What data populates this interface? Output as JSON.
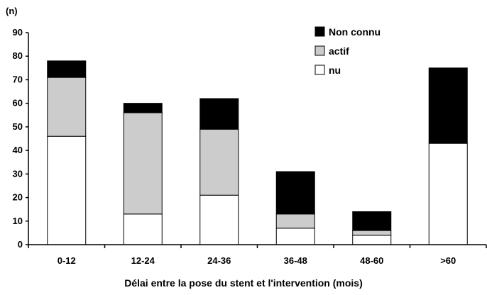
{
  "chart_data": {
    "type": "bar",
    "stacked": true,
    "categories": [
      "0-12",
      "12-24",
      "24-36",
      "36-48",
      "48-60",
      ">60"
    ],
    "series": [
      {
        "name": "nu",
        "color": "#ffffff",
        "values": [
          46,
          13,
          21,
          7,
          4,
          43
        ]
      },
      {
        "name": "actif",
        "color": "#cccccc",
        "values": [
          25,
          43,
          28,
          6,
          2,
          0
        ]
      },
      {
        "name": "Non connu",
        "color": "#000000",
        "values": [
          7,
          4,
          13,
          18,
          8,
          32
        ]
      }
    ],
    "ylabel": "(n)",
    "xlabel": "Délai entre la pose du stent et l'intervention (mois)",
    "ylim": [
      0,
      90
    ],
    "yticks": [
      0,
      10,
      20,
      30,
      40,
      50,
      60,
      70,
      80,
      90
    ],
    "grid": false,
    "legend_position": "top-right",
    "legend_order": [
      "Non connu",
      "actif",
      "nu"
    ]
  }
}
